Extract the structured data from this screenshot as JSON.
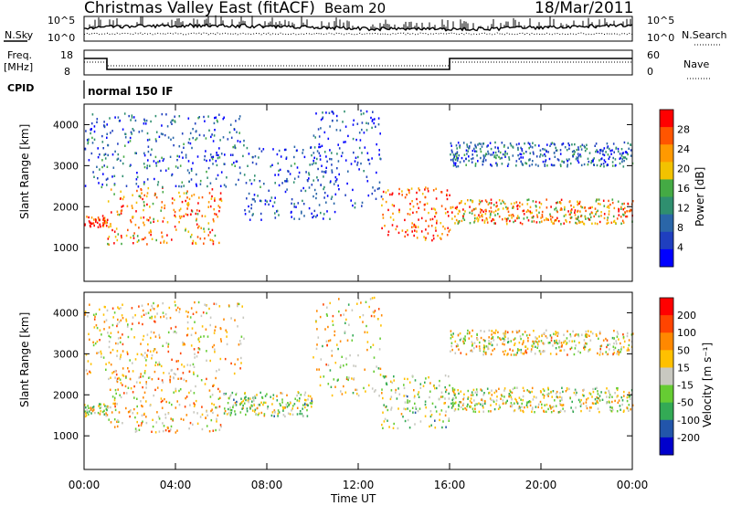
{
  "header": {
    "title": "Christmas Valley East (fitACF)",
    "beam": "Beam 20",
    "date": "18/Mar/2011"
  },
  "param_panels": {
    "nsky_label": "N.Sky",
    "nsky_ticks": [
      "10^5",
      "10^0"
    ],
    "nsearch_label": "N.Search",
    "freq_label": "Freq.",
    "freq_unit": "[MHz]",
    "freq_ticks": [
      "18",
      "8"
    ],
    "nave_ticks": [
      "60",
      "0"
    ],
    "nave_label": "Nave",
    "cpid_label": "CPID",
    "cpid_value": "normal 150 IF"
  },
  "chart_data": [
    {
      "type": "heatmap",
      "name": "power",
      "ylabel": "Slant Range [km]",
      "ylim": [
        180,
        4500
      ],
      "yticks": [
        "1000",
        "2000",
        "3000",
        "4000"
      ],
      "colorbar_label": "Power [dB]",
      "colorbar_ticks": [
        "28",
        "24",
        "20",
        "16",
        "12",
        "8",
        "4"
      ],
      "colors": [
        "#0000ff",
        "#1f3fbf",
        "#2a66a8",
        "#2f8f6f",
        "#44aa44",
        "#f2c200",
        "#ff9900",
        "#ff5500",
        "#ff0000"
      ],
      "bands": [
        {
          "t": [
            0,
            1
          ],
          "range": [
            1500,
            1800
          ],
          "level": 0.9
        },
        {
          "t": [
            1,
            6
          ],
          "range": [
            1100,
            2500
          ],
          "level": 0.75
        },
        {
          "t": [
            0,
            7
          ],
          "range": [
            2500,
            4300
          ],
          "level": 0.25
        },
        {
          "t": [
            7,
            11
          ],
          "range": [
            1700,
            3500
          ],
          "level": 0.2
        },
        {
          "t": [
            10,
            13
          ],
          "range": [
            2000,
            4400
          ],
          "level": 0.15
        },
        {
          "t": [
            13,
            16
          ],
          "range": [
            1200,
            2500
          ],
          "level": 0.85
        },
        {
          "t": [
            16,
            24
          ],
          "range": [
            1600,
            2200
          ],
          "level": 0.7
        },
        {
          "t": [
            16,
            24
          ],
          "range": [
            3000,
            3600
          ],
          "level": 0.25
        }
      ]
    },
    {
      "type": "heatmap",
      "name": "velocity",
      "ylabel": "Slant Range [km]",
      "ylim": [
        180,
        4500
      ],
      "yticks": [
        "1000",
        "2000",
        "3000",
        "4000"
      ],
      "xlabel": "Time UT",
      "xticks": [
        "00:00",
        "04:00",
        "08:00",
        "12:00",
        "16:00",
        "20:00",
        "00:00"
      ],
      "colorbar_label": "Velocity [m s⁻¹]",
      "colorbar_ticks": [
        "200",
        "100",
        "50",
        "15",
        "-15",
        "-50",
        "-100",
        "-200"
      ],
      "colors": [
        "#0000cc",
        "#2255aa",
        "#33aa55",
        "#66cc33",
        "#c8c8c0",
        "#ffc000",
        "#ff8800",
        "#ff4400",
        "#ff0000"
      ],
      "bands": [
        {
          "t": [
            0,
            1
          ],
          "range": [
            1500,
            1800
          ],
          "level": 0.5
        },
        {
          "t": [
            1,
            6
          ],
          "range": [
            1100,
            2500
          ],
          "level": 0.6
        },
        {
          "t": [
            6,
            10
          ],
          "range": [
            1500,
            2100
          ],
          "level": 0.45
        },
        {
          "t": [
            0,
            7
          ],
          "range": [
            2500,
            4300
          ],
          "level": 0.6
        },
        {
          "t": [
            10,
            13
          ],
          "range": [
            2000,
            4400
          ],
          "level": 0.55
        },
        {
          "t": [
            13,
            16
          ],
          "range": [
            1200,
            2500
          ],
          "level": 0.45
        },
        {
          "t": [
            16,
            24
          ],
          "range": [
            1600,
            2200
          ],
          "level": 0.5
        },
        {
          "t": [
            16,
            24
          ],
          "range": [
            3000,
            3600
          ],
          "level": 0.55
        }
      ]
    }
  ]
}
